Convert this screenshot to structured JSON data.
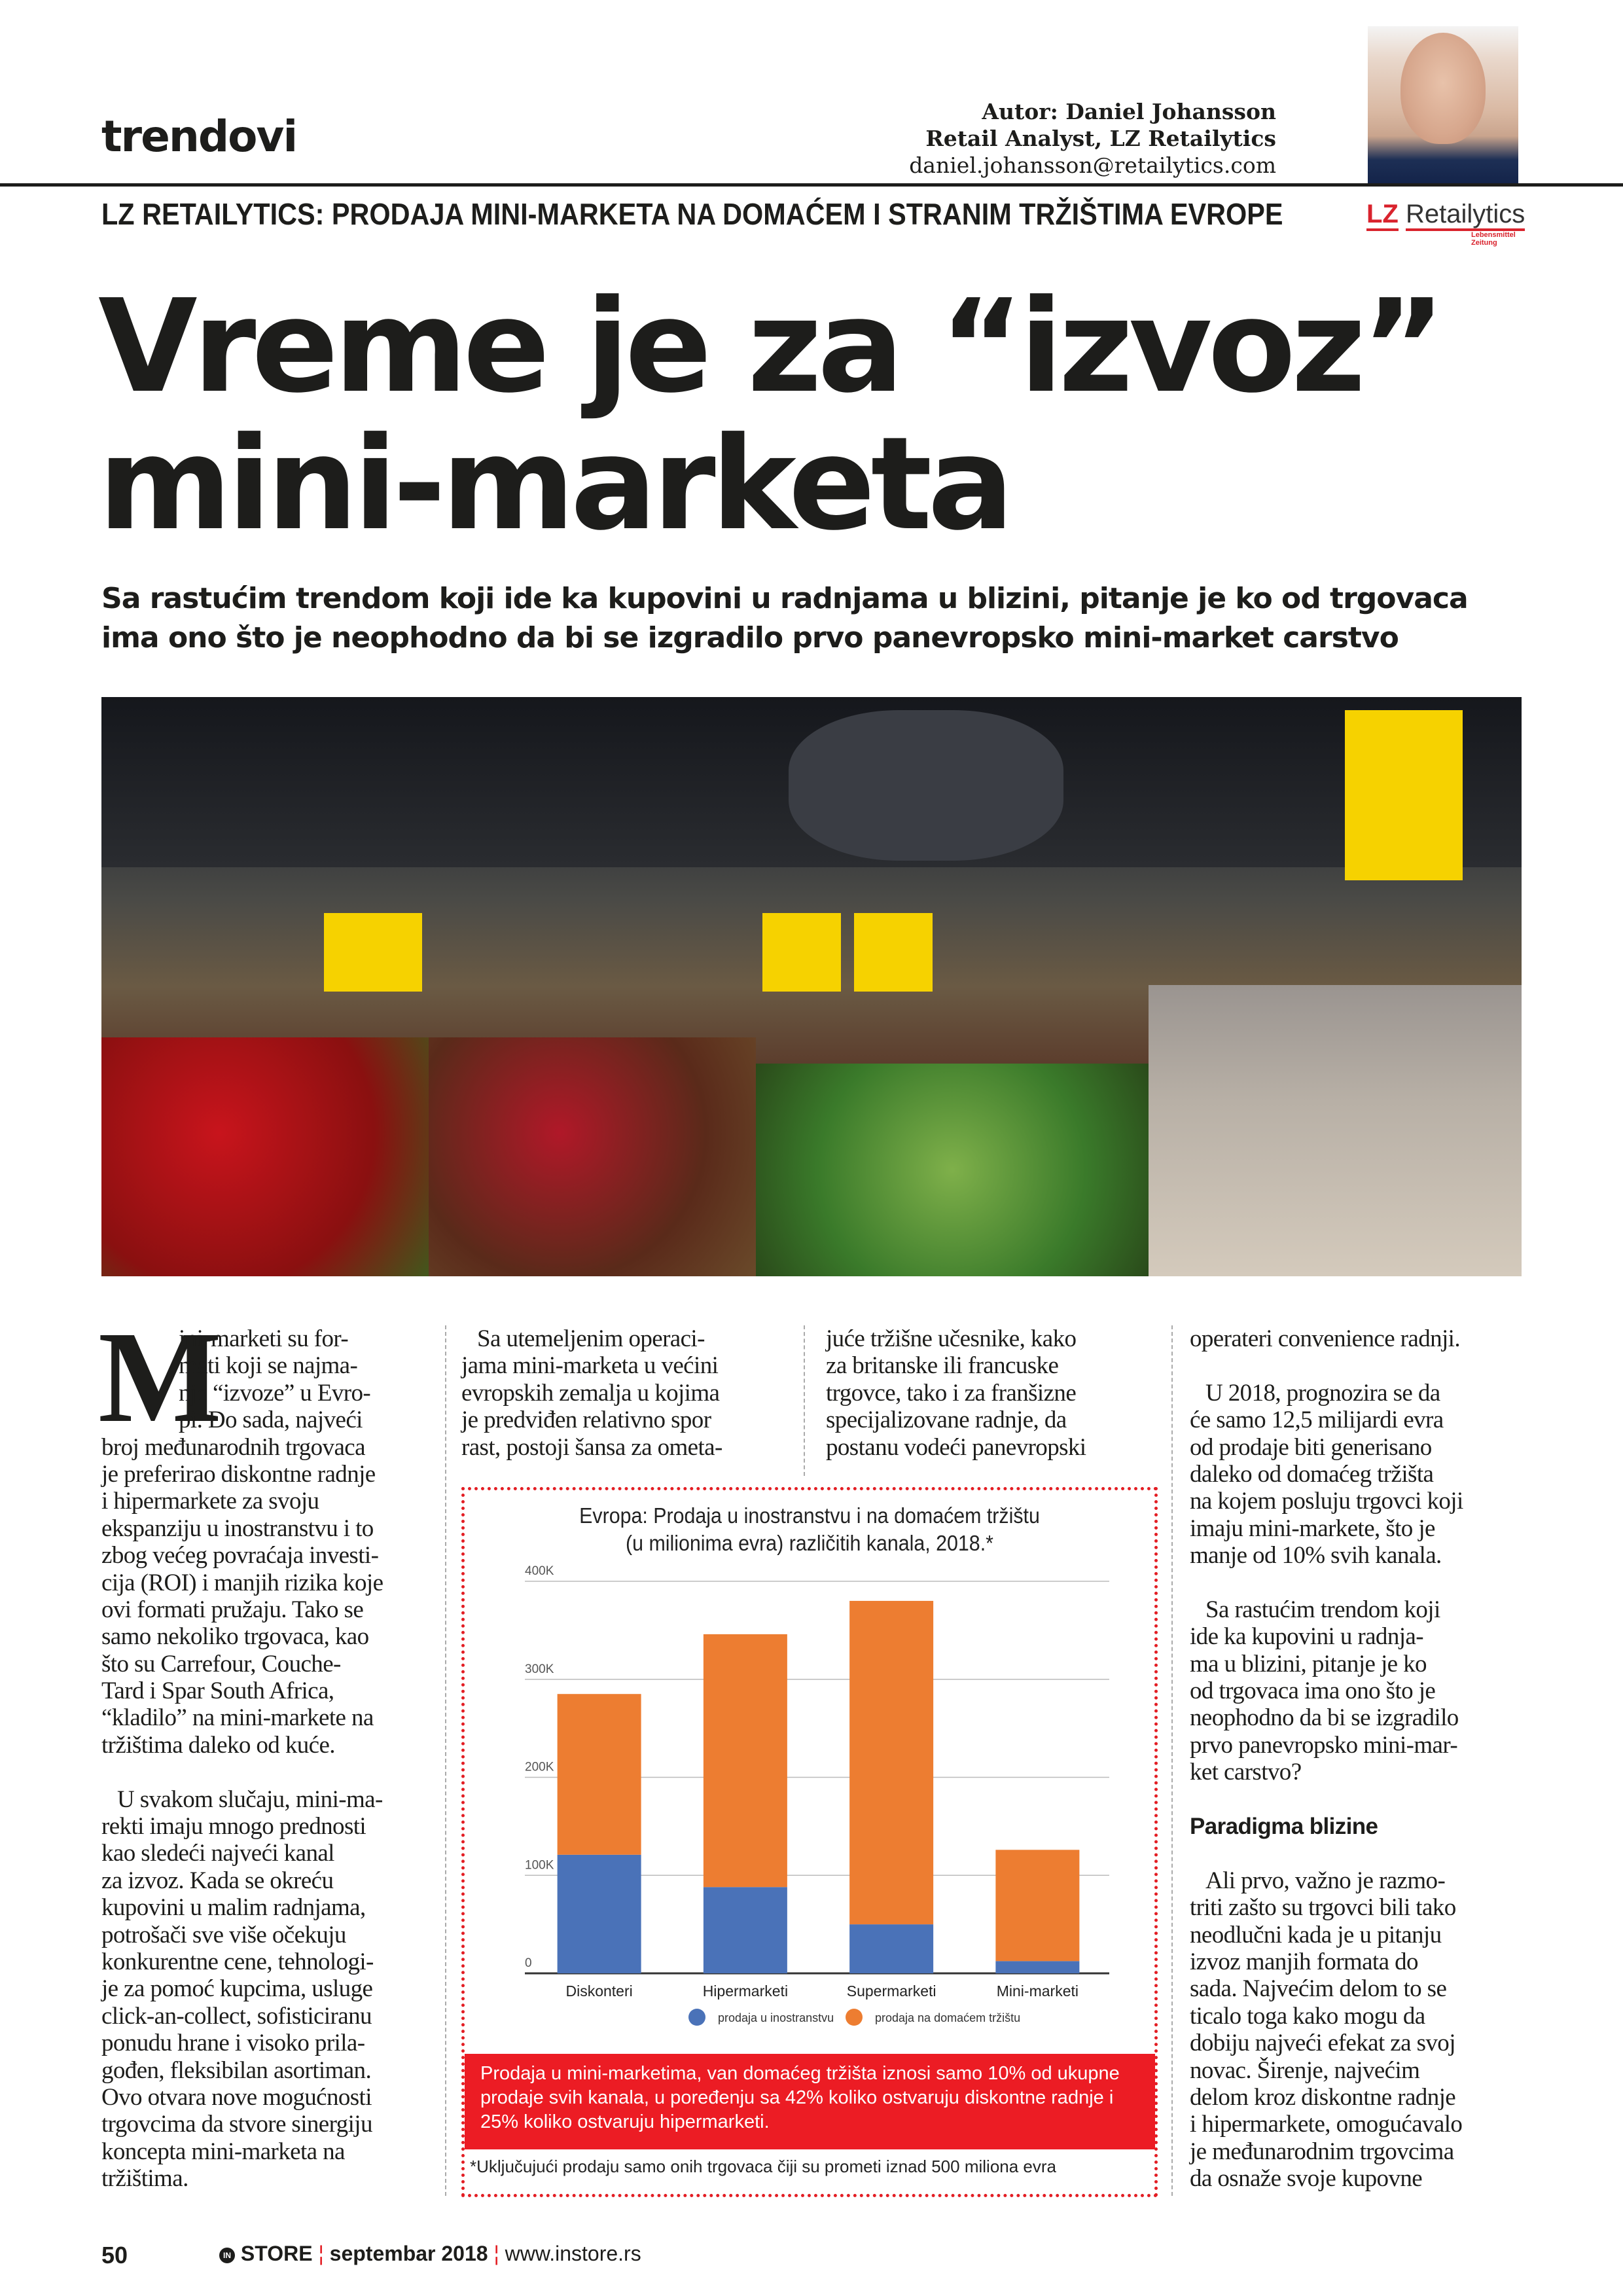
{
  "header": {
    "section": "trendovi",
    "author_line": "Autor: Daniel Johansson",
    "author_role": "Retail Analyst, LZ Retailytics",
    "author_email": "daniel.johansson@retailytics.com",
    "kicker": "LZ RETAILYTICS: PRODAJA MINI-MARKETA NA DOMAĆEM I STRANIM TRŽIŠTIMA EVROPE",
    "logo_text": "LZ Retailytics Lebensmittel Zeitung"
  },
  "headline": {
    "line1": "Vreme je za “izvoz”",
    "line2": "mini-marketa",
    "deck": "Sa rastućim trendom koji ide ka kupovini u radnjama u blizini, pitanje je ko od trgovaca ima ono što je neophodno da bi se izgradilo prvo panevropsko mini-market carstvo"
  },
  "body": {
    "dropcap": "M",
    "col1": [
      "ini-marketi su for-",
      "mati koji se najma-",
      "nje “izvoze” u Evro-",
      "pi. Do sada, najveći",
      "broj međunarodnih trgovaca",
      "je preferirao diskontne radnje",
      "i hipermarkete za svoju",
      "ekspanziju u inostranstvu i to",
      "zbog većeg povraćaja investi-",
      "cija (ROI) i manjih rizika koje",
      "ovi formati pružaju. Tako se",
      "samo nekoliko trgovaca, kao",
      "što su Carrefour, Couche-",
      "Tard i Spar South Africa,",
      "“kladilo” na mini-markete na",
      "tržištima daleko od kuće.",
      "",
      "U svakom slučaju, mini-ma-",
      "rekti imaju mnogo prednosti",
      "kao sledeći najveći kanal",
      "za izvoz. Kada se okreću",
      "kupovini u malim radnjama,",
      "potrošači sve više očekuju",
      "konkurentne cene, tehnologi-",
      "je za pomoć kupcima, usluge",
      "click-an-collect, sofisticiranu",
      "ponudu hrane i visoko prila-",
      "gođen, fleksibilan asortiman.",
      "Ovo otvara nove mogućnosti",
      "trgovcima da stvore sinergiju",
      "koncepta mini-marketa na",
      "tržištima."
    ],
    "col2": [
      "Sa utemeljenim operaci-",
      "jama mini-marketa u većini",
      "evropskih zemalja u kojima",
      "je predviđen relativno spor",
      "rast, postoji šansa za ometa-"
    ],
    "col3": [
      "juće tržišne učesnike, kako",
      "za britanske ili francuske",
      "trgovce, tako i za franšizne",
      "specijalizovane radnje, da",
      "postanu vodeći panevropski"
    ],
    "col4": [
      "operateri convenience radnji.",
      "",
      "U 2018, prognozira se da",
      "će samo 12,5 milijardi evra",
      "od prodaje biti generisano",
      "daleko od domaćeg tržišta",
      "na kojem posluju trgovci koji",
      "imaju mini-markete, što je",
      "manje od 10% svih kanala.",
      "",
      "Sa rastućim trendom koji",
      "ide ka kupovini u radnja-",
      "ma u blizini, pitanje je ko",
      "od trgovaca ima ono što je",
      "neophodno da bi se izgradilo",
      "prvo panevropsko mini-mar-",
      "ket carstvo?",
      "",
      "Paradigma blizine",
      "",
      "Ali prvo, važno je razmo-",
      "triti zašto su trgovci bili tako",
      "neodlučni kada je u pitanju",
      "izvoz manjih formata do",
      "sada. Najvećim delom to se",
      "ticalo toga kako mogu da",
      "dobiju najveći efekat za svoj",
      "novac. Širenje, najvećim",
      "delom kroz diskontne radnje",
      "i hipermarkete, omogućavalo",
      "je međunarodnim trgovcima",
      "da osnaže svoje kupovne"
    ],
    "col4_heading": "Paradigma blizine"
  },
  "chart_data": {
    "type": "bar",
    "stacked": true,
    "title": "Evropa: Prodaja u inostranstvu i na domaćem tržištu (u milionima evra) različitih kanala, 2018.*",
    "title_line1": "Evropa: Prodaja u inostranstvu i na domaćem tržištu",
    "title_line2": "(u milionima evra) različitih kanala, 2018.*",
    "categories": [
      "Diskonteri",
      "Hipermarketi",
      "Supermarketi",
      "Mini-marketi"
    ],
    "series": [
      {
        "name": "prodaja u inostranstvu",
        "color": "#4a72b8",
        "values": [
          121000,
          88000,
          50000,
          12500
        ]
      },
      {
        "name": "prodaja na domaćem tržištu",
        "color": "#ed7d31",
        "values": [
          164000,
          258000,
          330000,
          113500
        ]
      }
    ],
    "ylim": [
      0,
      400000
    ],
    "yticks": [
      0,
      100000,
      200000,
      300000,
      400000
    ],
    "ytick_labels": [
      "0",
      "100K",
      "200K",
      "300K",
      "400K"
    ],
    "grid": true,
    "legend_position": "bottom"
  },
  "callout": {
    "text": "Prodaja u mini-marketima, van domaćeg tržišta iznosi samo 10% od ukupne prodaje svih kanala, u poređenju sa 42% koliko ostvaruju diskontne radnje i 25% koliko ostvaruju hipermarketi.",
    "footnote": "*Uključujući prodaju samo onih trgovaca čiji su prometi iznad 500 miliona evra",
    "color": "#ec1c24"
  },
  "footer": {
    "page": "50",
    "brand": "STORE",
    "issue": "septembar 2018",
    "url": "www.instore.rs"
  }
}
